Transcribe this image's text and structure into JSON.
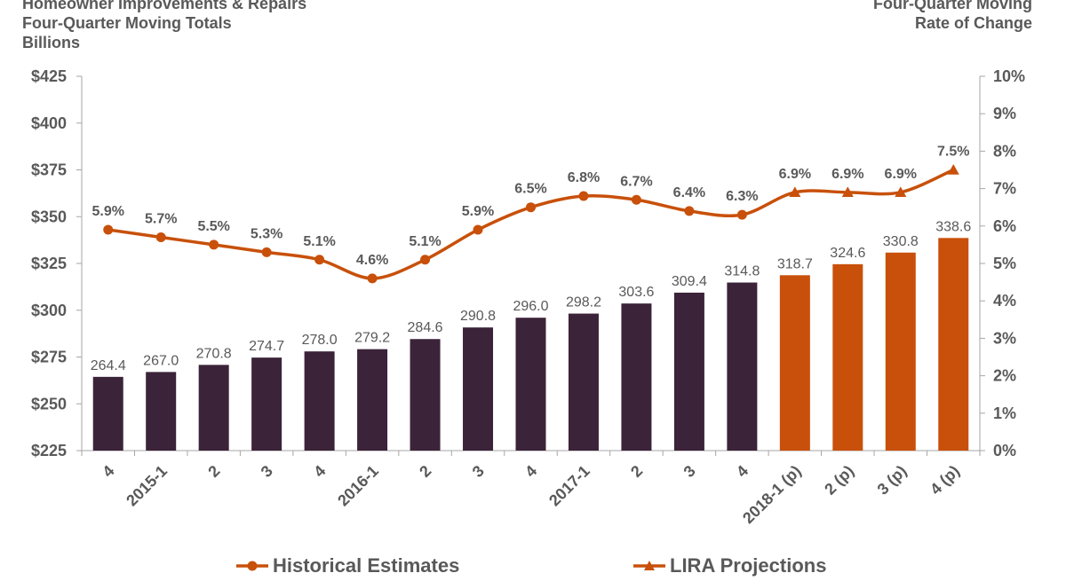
{
  "titles": {
    "left": [
      "Homeowner Improvements & Repairs",
      "Four-Quarter Moving Totals",
      "Billions"
    ],
    "right": [
      "Four-Quarter Moving",
      "Rate of Change"
    ]
  },
  "colors": {
    "historical_bar": "#3b2339",
    "projection_bar": "#c8500a",
    "line": "#c8500a",
    "axis": "#a6a6a6",
    "text": "#595959"
  },
  "chart_data": {
    "type": "bar",
    "categories": [
      "4",
      "2015-1",
      "2",
      "3",
      "4",
      "2016-1",
      "2",
      "3",
      "4",
      "2017-1",
      "2",
      "3",
      "4",
      "2018-1 (p)",
      "2 (p)",
      "3 (p)",
      "4 (p)"
    ],
    "series": [
      {
        "name": "",
        "type": "bar",
        "axis": "left",
        "values": [
          264.4,
          267.0,
          270.8,
          274.7,
          278.0,
          279.2,
          284.6,
          290.8,
          296.0,
          298.2,
          303.6,
          309.4,
          314.8,
          318.7,
          324.6,
          330.8,
          338.6
        ],
        "labels": [
          "264.4",
          "267.0",
          "270.8",
          "274.7",
          "278.0",
          "279.2",
          "284.6",
          "290.8",
          "296.0",
          "298.2",
          "303.6",
          "309.4",
          "314.8",
          "318.7",
          "324.6",
          "330.8",
          "338.6"
        ],
        "projected": [
          false,
          false,
          false,
          false,
          false,
          false,
          false,
          false,
          false,
          false,
          false,
          false,
          false,
          true,
          true,
          true,
          true
        ]
      },
      {
        "name": "Historical Estimates",
        "type": "line",
        "axis": "right",
        "marker": "circle",
        "values": [
          5.9,
          5.7,
          5.5,
          5.3,
          5.1,
          4.6,
          5.1,
          5.9,
          6.5,
          6.8,
          6.7,
          6.4,
          6.3,
          6.9,
          6.9,
          6.9,
          7.5
        ],
        "labels": [
          "5.9%",
          "5.7%",
          "5.5%",
          "5.3%",
          "5.1%",
          "4.6%",
          "5.1%",
          "5.9%",
          "6.5%",
          "6.8%",
          "6.7%",
          "6.4%",
          "6.3%",
          "6.9%",
          "6.9%",
          "6.9%",
          "7.5%"
        ]
      },
      {
        "name": "LIRA Projections",
        "type": "line",
        "axis": "right",
        "marker": "triangle",
        "start_index": 13
      }
    ],
    "y_left": {
      "min": 225,
      "max": 425,
      "step": 25,
      "tick_labels": [
        "$225",
        "$250",
        "$275",
        "$300",
        "$325",
        "$350",
        "$375",
        "$400",
        "$425"
      ]
    },
    "y_right": {
      "min": 0,
      "max": 10,
      "step": 1,
      "tick_labels": [
        "0%",
        "1%",
        "2%",
        "3%",
        "4%",
        "5%",
        "6%",
        "7%",
        "8%",
        "9%",
        "10%"
      ]
    },
    "grid": false,
    "legend_position": "bottom"
  }
}
